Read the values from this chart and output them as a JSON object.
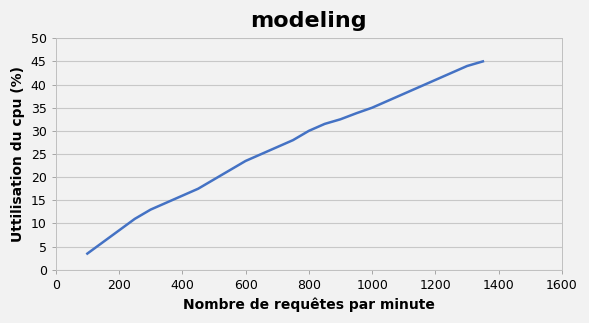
{
  "x": [
    100,
    150,
    200,
    250,
    300,
    350,
    400,
    450,
    500,
    550,
    600,
    650,
    700,
    750,
    800,
    850,
    900,
    950,
    1000,
    1050,
    1100,
    1150,
    1200,
    1250,
    1300,
    1350
  ],
  "y": [
    3.5,
    6.0,
    8.5,
    11.0,
    13.0,
    14.5,
    16.0,
    17.5,
    19.5,
    21.5,
    23.5,
    25.0,
    26.5,
    28.0,
    30.0,
    31.5,
    32.5,
    33.8,
    35.0,
    36.5,
    38.0,
    39.5,
    41.0,
    42.5,
    44.0,
    45.0
  ],
  "title": "modeling",
  "xlabel": "Nombre de requêtes par minute",
  "ylabel": "Uttilisation du cpu (%)",
  "xlim": [
    0,
    1600
  ],
  "ylim": [
    0,
    50
  ],
  "xticks": [
    0,
    200,
    400,
    600,
    800,
    1000,
    1200,
    1400,
    1600
  ],
  "yticks": [
    0,
    5,
    10,
    15,
    20,
    25,
    30,
    35,
    40,
    45,
    50
  ],
  "line_color": "#4472C4",
  "line_width": 1.8,
  "background_color": "#f2f2f2",
  "plot_bg_color": "#f2f2f2",
  "grid_color": "#c8c8c8",
  "title_fontsize": 16,
  "label_fontsize": 10,
  "tick_fontsize": 9
}
